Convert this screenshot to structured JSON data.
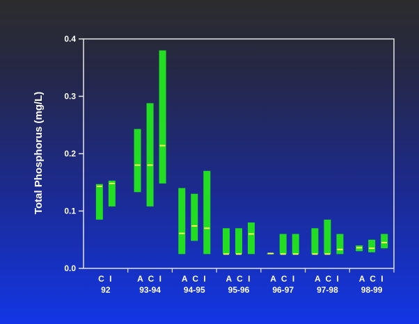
{
  "chart_data": {
    "type": "range-bar",
    "ylabel": "Total Phosphorus (mg/L)",
    "ylim": [
      0.0,
      0.4
    ],
    "yticks": [
      "0.0",
      "0.1",
      "0.2",
      "0.3",
      "0.4"
    ],
    "groups": [
      {
        "treatments": "C I",
        "period": "92",
        "bars": [
          {
            "treatment": "C",
            "min": 0.085,
            "max": 0.147,
            "median": 0.143
          },
          {
            "treatment": "I",
            "min": 0.108,
            "max": 0.153,
            "median": 0.148
          }
        ]
      },
      {
        "treatments": "A C I",
        "period": "93-94",
        "bars": [
          {
            "treatment": "A",
            "min": 0.133,
            "max": 0.243,
            "median": 0.18
          },
          {
            "treatment": "C",
            "min": 0.108,
            "max": 0.288,
            "median": 0.18
          },
          {
            "treatment": "I",
            "min": 0.148,
            "max": 0.38,
            "median": 0.214
          }
        ]
      },
      {
        "treatments": "A C I",
        "period": "94-95",
        "bars": [
          {
            "treatment": "A",
            "min": 0.025,
            "max": 0.14,
            "median": 0.061
          },
          {
            "treatment": "C",
            "min": 0.048,
            "max": 0.13,
            "median": 0.074
          },
          {
            "treatment": "I",
            "min": 0.025,
            "max": 0.17,
            "median": 0.07
          }
        ]
      },
      {
        "treatments": "A C I",
        "period": "95-96",
        "bars": [
          {
            "treatment": "A",
            "min": 0.025,
            "max": 0.07,
            "median": 0.025
          },
          {
            "treatment": "C",
            "min": 0.025,
            "max": 0.07,
            "median": 0.025
          },
          {
            "treatment": "I",
            "min": 0.025,
            "max": 0.08,
            "median": 0.06
          }
        ]
      },
      {
        "treatments": "A C I",
        "period": "96-97",
        "bars": [
          {
            "treatment": "A",
            "min": 0.025,
            "max": 0.027,
            "median": 0.026
          },
          {
            "treatment": "C",
            "min": 0.025,
            "max": 0.06,
            "median": 0.025
          },
          {
            "treatment": "I",
            "min": 0.025,
            "max": 0.06,
            "median": 0.025
          }
        ]
      },
      {
        "treatments": "A C I",
        "period": "97-98",
        "bars": [
          {
            "treatment": "A",
            "min": 0.025,
            "max": 0.07,
            "median": 0.025
          },
          {
            "treatment": "C",
            "min": 0.025,
            "max": 0.085,
            "median": 0.025
          },
          {
            "treatment": "I",
            "min": 0.025,
            "max": 0.06,
            "median": 0.033
          }
        ]
      },
      {
        "treatments": "A C I",
        "period": "98-99",
        "bars": [
          {
            "treatment": "A",
            "min": 0.03,
            "max": 0.04,
            "median": 0.036
          },
          {
            "treatment": "C",
            "min": 0.028,
            "max": 0.05,
            "median": 0.035
          },
          {
            "treatment": "I",
            "min": 0.035,
            "max": 0.06,
            "median": 0.045
          }
        ]
      }
    ],
    "grid": false,
    "legend": "none"
  },
  "colors": {
    "bar": "#22dd22",
    "median": "#ffff55",
    "axis": "#e6e6e6",
    "text": "#ffffff"
  }
}
